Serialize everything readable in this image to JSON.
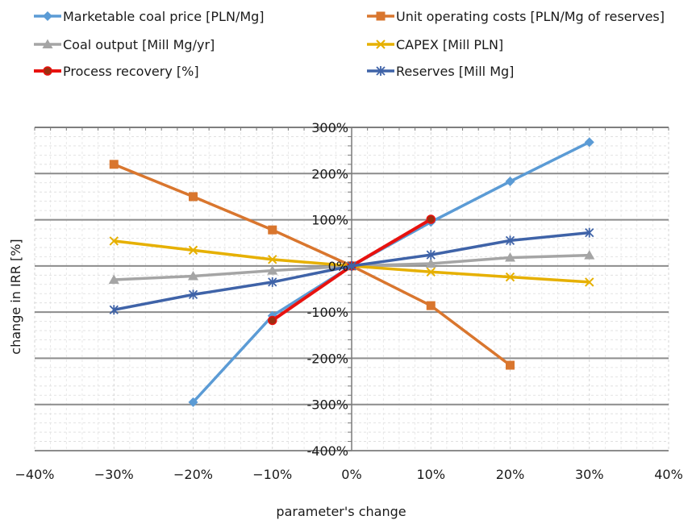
{
  "chart_data": {
    "type": "line",
    "xlabel": "parameter's change",
    "ylabel": "change in IRR [%]",
    "xlim": [
      -40,
      40
    ],
    "ylim": [
      -400,
      300
    ],
    "x_ticks": [
      -40,
      -30,
      -20,
      -10,
      0,
      10,
      20,
      30,
      40
    ],
    "y_ticks": [
      300,
      200,
      100,
      0,
      -100,
      -200,
      -300,
      -400
    ],
    "x_tick_labels": [
      "−40%",
      "−30%",
      "−20%",
      "−10%",
      "0%",
      "10%",
      "20%",
      "30%",
      "40%"
    ],
    "y_tick_labels": [
      "300%",
      "200%",
      "100%",
      "0%",
      "-100%",
      "-200%",
      "-300%",
      "-400%"
    ],
    "grid": {
      "major_y": true,
      "minor": true
    },
    "legend_placement": "top",
    "series": [
      {
        "name": "Marketable coal price [PLN/Mg]",
        "color": "#5B9BD5",
        "marker": "diamond",
        "x": [
          -20,
          -10,
          0,
          10,
          20,
          30
        ],
        "y": [
          -295,
          -108,
          0,
          95,
          183,
          268
        ]
      },
      {
        "name": "Unit operating costs [PLN/Mg of reserves]",
        "color": "#D9762E",
        "marker": "square",
        "x": [
          -30,
          -20,
          -10,
          0,
          10,
          20
        ],
        "y": [
          220,
          150,
          78,
          0,
          -86,
          -215
        ]
      },
      {
        "name": "Coal output [Mill Mg/yr]",
        "color": "#A5A5A5",
        "marker": "triangle",
        "x": [
          -30,
          -20,
          -10,
          0,
          10,
          20,
          30
        ],
        "y": [
          -30,
          -22,
          -10,
          0,
          5,
          18,
          23
        ]
      },
      {
        "name": "CAPEX [Mill PLN]",
        "color": "#E6B000",
        "marker": "x",
        "x": [
          -30,
          -20,
          -10,
          0,
          10,
          20,
          30
        ],
        "y": [
          54,
          34,
          14,
          0,
          -13,
          -24,
          -35
        ]
      },
      {
        "name": "Process recovery [%]",
        "color": "#E8120F",
        "marker": "circle",
        "x": [
          -10,
          0,
          10
        ],
        "y": [
          -118,
          0,
          101
        ]
      },
      {
        "name": "Reserves [Mill Mg]",
        "color": "#3F63A8",
        "marker": "star",
        "x": [
          -30,
          -20,
          -10,
          0,
          10,
          20,
          30
        ],
        "y": [
          -95,
          -62,
          -35,
          0,
          24,
          55,
          72
        ]
      }
    ]
  }
}
